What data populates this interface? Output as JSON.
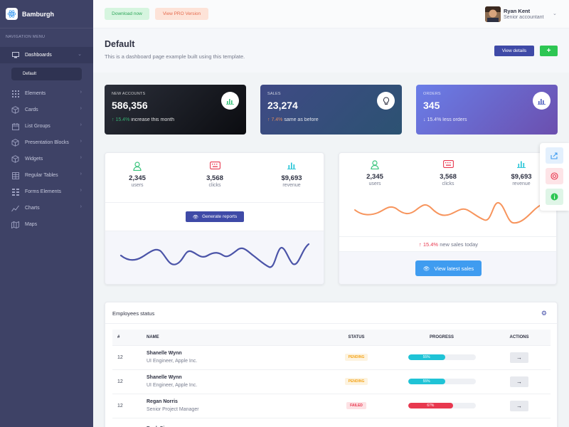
{
  "brand": {
    "name": "Bamburgh"
  },
  "sidebar": {
    "heading": "Navigation Menu",
    "dashboards": "Dashboards",
    "sub_default": "Default",
    "items": [
      {
        "label": "Elements",
        "icon": "layers-icon"
      },
      {
        "label": "Cards",
        "icon": "cube-icon"
      },
      {
        "label": "List Groups",
        "icon": "calendar-icon"
      },
      {
        "label": "Presentation Blocks",
        "icon": "cube-icon"
      },
      {
        "label": "Widgets",
        "icon": "cube-icon"
      },
      {
        "label": "Regular Tables",
        "icon": "table-icon"
      },
      {
        "label": "Forms Elements",
        "icon": "grid-icon"
      },
      {
        "label": "Charts",
        "icon": "chart-icon"
      },
      {
        "label": "Maps",
        "icon": "map-icon"
      }
    ]
  },
  "topbar": {
    "download": "Download now",
    "pro": "View PRO Version"
  },
  "user": {
    "name": "Ryan Kent",
    "role": "Senior accountant"
  },
  "header": {
    "title": "Default",
    "subtitle": "This is a dashboard page example built using this template.",
    "view_details": "View details",
    "plus": "+"
  },
  "stats": [
    {
      "label": "New Accounts",
      "value": "586,356",
      "change": "15.4%",
      "change_text": "increase this month",
      "change_color": "#3ac47d"
    },
    {
      "label": "Sales",
      "value": "23,274",
      "change": "7.4%",
      "change_text": "same as before",
      "change_color": "#f7945c"
    },
    {
      "label": "Orders",
      "value": "345",
      "change": "15.4%",
      "change_text": "less orders",
      "change_color": "#ffffff"
    }
  ],
  "metrics_left": [
    {
      "value": "2,345",
      "label": "users"
    },
    {
      "value": "3,568",
      "label": "clicks"
    },
    {
      "value": "$9,693",
      "label": "revenue"
    }
  ],
  "metrics_right": [
    {
      "value": "2,345",
      "label": "users"
    },
    {
      "value": "3,568",
      "label": "clicks"
    },
    {
      "value": "$9,693",
      "label": "revenue"
    }
  ],
  "generate_reports": "Generate reports",
  "sales_today": {
    "pct": "15.4%",
    "text": "new sales today"
  },
  "view_latest_sales": "View latest sales",
  "employees": {
    "title": "Employees status",
    "columns": [
      "#",
      "Name",
      "Status",
      "Progress",
      "Actions"
    ],
    "rows": [
      {
        "id": "12",
        "name": "Shanelle Wynn",
        "role": "UI Engineer, Apple Inc.",
        "status": "PENDING",
        "status_bg": "#fdf3df",
        "status_color": "#f4a51c",
        "progress": 0.55,
        "progress_label": "55%",
        "bar_color": "#1fc3d6"
      },
      {
        "id": "12",
        "name": "Shanelle Wynn",
        "role": "UI Engineer, Apple Inc.",
        "status": "PENDING",
        "status_bg": "#fdf3df",
        "status_color": "#f4a51c",
        "progress": 0.55,
        "progress_label": "55%",
        "bar_color": "#1fc3d6"
      },
      {
        "id": "12",
        "name": "Regan Norris",
        "role": "Senior Project Manager",
        "status": "FAILED",
        "status_bg": "#fde1e4",
        "status_color": "#e8384f",
        "progress": 0.67,
        "progress_label": "67%",
        "bar_color": "#e8384f"
      },
      {
        "id": "",
        "name": "Beck Simpson",
        "role": "",
        "status": "",
        "status_bg": "#ffffff",
        "status_color": "#ffffff",
        "progress": 0,
        "progress_label": "",
        "bar_color": "#ffffff"
      }
    ]
  }
}
